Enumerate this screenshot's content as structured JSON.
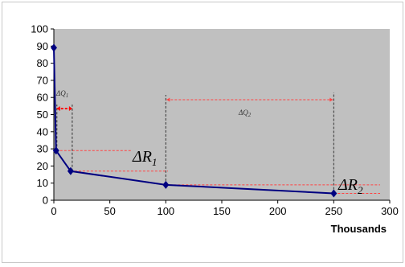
{
  "chart_data": {
    "type": "line",
    "x": [
      0,
      2,
      15,
      100,
      250
    ],
    "y": [
      89,
      29,
      17,
      9,
      4
    ],
    "xlim": [
      0,
      300
    ],
    "ylim": [
      0,
      100
    ],
    "xticks": [
      0,
      50,
      100,
      150,
      200,
      250,
      300
    ],
    "yticks": [
      0,
      10,
      20,
      30,
      40,
      50,
      60,
      70,
      80,
      90,
      100
    ],
    "xlabel": "Thousands",
    "ylabel": "",
    "title": "",
    "grid": false,
    "legend": "none",
    "colors": {
      "plot_area": "#c0c0c0",
      "line": "#000080",
      "marker": "#000080",
      "guide_black": "#333333",
      "guide_red": "#ff4444",
      "guide_red_bold": "#ff0000"
    },
    "annotations": {
      "dq1": {
        "symbol": "ΔQ",
        "sub": "1"
      },
      "dq2": {
        "symbol": "ΔQ",
        "sub": "2"
      },
      "dr1": {
        "symbol": "ΔR",
        "sub": "1"
      },
      "dr2": {
        "symbol": "ΔR",
        "sub": "2"
      }
    }
  }
}
